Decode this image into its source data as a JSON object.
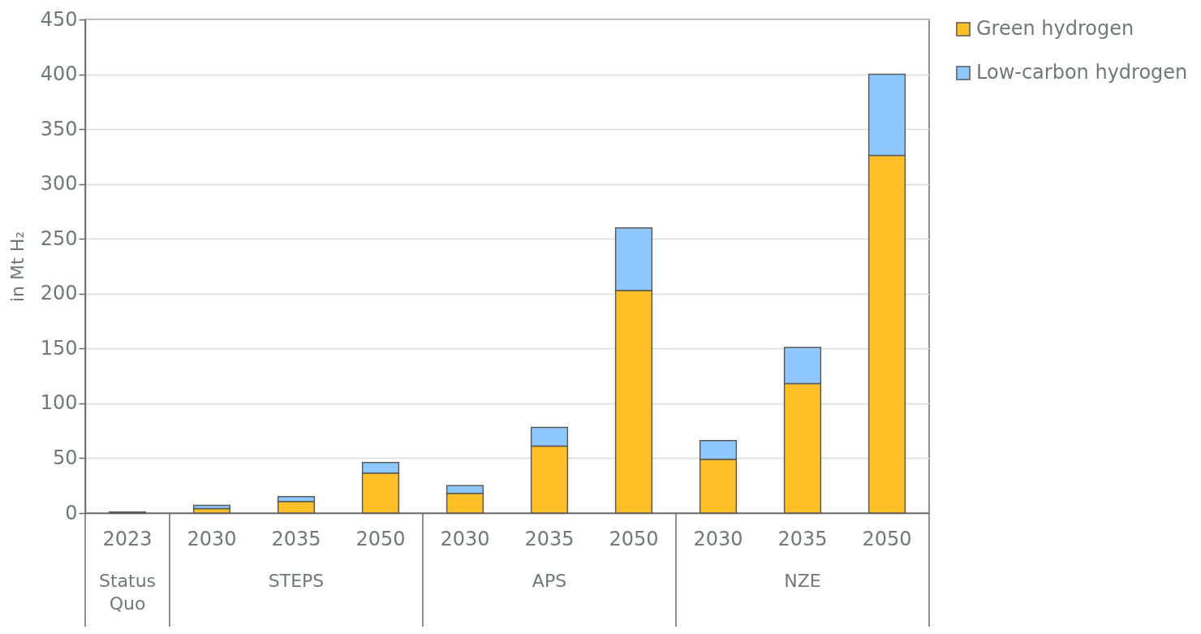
{
  "chart_data": {
    "type": "bar",
    "stacked": true,
    "ylabel": "in Mt H₂",
    "categories": [
      "2023",
      "2030",
      "2035",
      "2050",
      "2030",
      "2035",
      "2050",
      "2030",
      "2035",
      "2050"
    ],
    "series": [
      {
        "name": "Green hydrogen",
        "color": "#ffbf27",
        "values": [
          1,
          4,
          10.5,
          36.5,
          18,
          61,
          203,
          49,
          118,
          326
        ]
      },
      {
        "name": "Low-carbon hydrogen",
        "color": "#8fc8fe",
        "values": [
          null,
          3,
          4.5,
          9.5,
          7,
          17,
          57,
          17,
          33,
          74
        ]
      }
    ],
    "annotations": [
      "Status Quo",
      "STEPS",
      "APS",
      "NZE"
    ],
    "ylim": [
      0,
      450
    ],
    "yticks": [
      0,
      50,
      100,
      150,
      200,
      250,
      300,
      350,
      400,
      450
    ],
    "grid": "y",
    "legend": "right"
  }
}
